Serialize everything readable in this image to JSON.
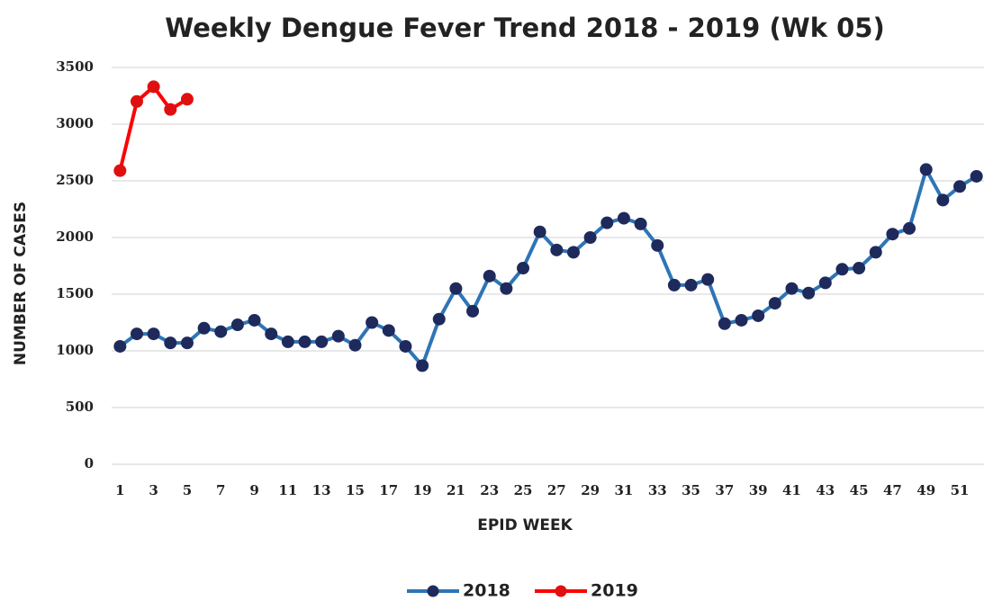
{
  "chart_data": {
    "type": "line",
    "title": "Weekly Dengue Fever Trend 2018 - 2019 (Wk 05)",
    "x_label": "EPID WEEK",
    "y_label": "NUMBER OF CASES",
    "x": [
      1,
      2,
      3,
      4,
      5,
      6,
      7,
      8,
      9,
      10,
      11,
      12,
      13,
      14,
      15,
      16,
      17,
      18,
      19,
      20,
      21,
      22,
      23,
      24,
      25,
      26,
      27,
      28,
      29,
      30,
      31,
      32,
      33,
      34,
      35,
      36,
      37,
      38,
      39,
      40,
      41,
      42,
      43,
      44,
      45,
      46,
      47,
      48,
      49,
      50,
      51,
      52
    ],
    "series": [
      {
        "name": "2018",
        "color": "#2e75b6",
        "marker_color": "#1f2a5c",
        "values": [
          1040,
          1150,
          1150,
          1070,
          1070,
          1200,
          1170,
          1230,
          1270,
          1150,
          1080,
          1080,
          1080,
          1130,
          1050,
          1250,
          1180,
          1040,
          870,
          1280,
          1550,
          1350,
          1660,
          1550,
          1730,
          2050,
          1890,
          1870,
          2000,
          2130,
          2170,
          2120,
          1930,
          1580,
          1580,
          1630,
          1240,
          1270,
          1310,
          1420,
          1550,
          1510,
          1600,
          1720,
          1730,
          1870,
          2030,
          2080,
          2600,
          2330,
          2450,
          2540
        ]
      },
      {
        "name": "2019",
        "color": "#ff0000",
        "marker_color": "#e01010",
        "values": [
          2590,
          3200,
          3330,
          3130,
          3220,
          null,
          null,
          null,
          null,
          null,
          null,
          null,
          null,
          null,
          null,
          null,
          null,
          null,
          null,
          null,
          null,
          null,
          null,
          null,
          null,
          null,
          null,
          null,
          null,
          null,
          null,
          null,
          null,
          null,
          null,
          null,
          null,
          null,
          null,
          null,
          null,
          null,
          null,
          null,
          null,
          null,
          null,
          null,
          null,
          null,
          null,
          null
        ]
      }
    ],
    "xlim": [
      0.5,
      52.5
    ],
    "xticks": [
      1,
      3,
      5,
      7,
      9,
      11,
      13,
      15,
      17,
      19,
      21,
      23,
      25,
      27,
      29,
      31,
      33,
      35,
      37,
      39,
      41,
      43,
      45,
      47,
      49,
      51
    ],
    "ylim": [
      0,
      3500
    ],
    "yticks": [
      0,
      500,
      1000,
      1500,
      2000,
      2500,
      3000,
      3500
    ],
    "grid": true,
    "legend": "bottom"
  }
}
